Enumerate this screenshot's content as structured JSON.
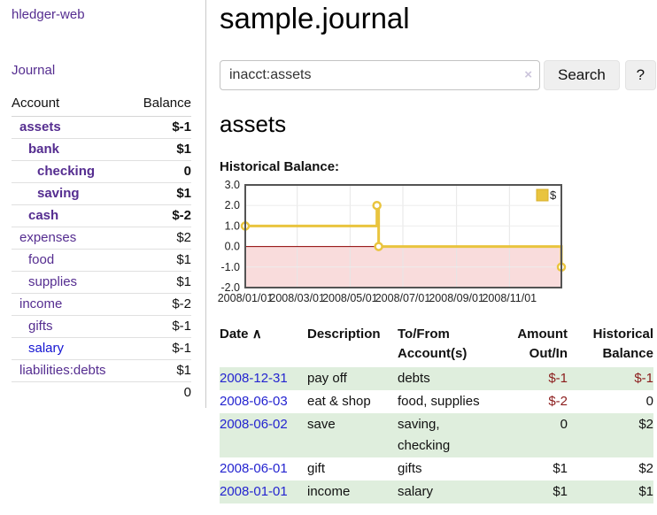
{
  "app": {
    "title": "hledger-web"
  },
  "colors": {
    "link_purple": "#552d90",
    "link_blue": "#1414d2",
    "negative_strong": "#8b1c1c",
    "negative_soft": "#c37e7e",
    "row_stripe_green": "#dfeedd",
    "chart_gold": "#e9c43e",
    "chart_negative_fill": "#f9dcdc",
    "chart_zero_line": "#8b0000"
  },
  "sidebar": {
    "journal_link": "Journal",
    "accounts_table": {
      "headers": {
        "account": "Account",
        "balance": "Balance"
      },
      "rows": [
        {
          "name": "assets",
          "indent": 1,
          "bold": true,
          "balance": "$-1",
          "negative": "strong"
        },
        {
          "name": "bank",
          "indent": 2,
          "bold": true,
          "balance": "$1",
          "negative": "none"
        },
        {
          "name": "checking",
          "indent": 3,
          "bold": true,
          "balance": "0",
          "negative": "none"
        },
        {
          "name": "saving",
          "indent": 3,
          "bold": true,
          "balance": "$1",
          "negative": "none"
        },
        {
          "name": "cash",
          "indent": 2,
          "bold": true,
          "balance": "$-2",
          "negative": "strong"
        },
        {
          "name": "expenses",
          "indent": 1,
          "bold": false,
          "balance": "$2",
          "negative": "none"
        },
        {
          "name": "food",
          "indent": 2,
          "bold": false,
          "balance": "$1",
          "negative": "none"
        },
        {
          "name": "supplies",
          "indent": 2,
          "bold": false,
          "balance": "$1",
          "negative": "none"
        },
        {
          "name": "income",
          "indent": 1,
          "bold": false,
          "balance": "$-2",
          "negative": "soft"
        },
        {
          "name": "gifts",
          "indent": 2,
          "bold": false,
          "balance": "$-1",
          "negative": "soft"
        },
        {
          "name": "salary",
          "indent": 2,
          "bold": false,
          "balance": "$-1",
          "negative": "soft",
          "link_style": "blue"
        },
        {
          "name": "liabilities:debts",
          "indent": 1,
          "bold": false,
          "balance": "$1",
          "negative": "none"
        }
      ],
      "total": "0"
    }
  },
  "header": {
    "title": "sample.journal"
  },
  "search": {
    "value": "inacct:assets",
    "clear_icon": "×",
    "button": "Search",
    "help_button": "?"
  },
  "account_page": {
    "title": "assets",
    "chart_label": "Historical Balance:"
  },
  "chart_data": {
    "type": "line",
    "title": "Historical Balance of assets",
    "step": true,
    "series": [
      {
        "name": "$",
        "color": "#e9c43e",
        "points": [
          [
            "2008/01/01",
            1
          ],
          [
            "2008/06/01",
            2
          ],
          [
            "2008/06/03",
            0
          ],
          [
            "2008/12/31",
            -1
          ]
        ]
      }
    ],
    "x_range": [
      "2008/01/01",
      "2008/12/31"
    ],
    "x_ticks": [
      "2008/01/01",
      "2008/03/01",
      "2008/05/01",
      "2008/07/01",
      "2008/09/01",
      "2008/11/01"
    ],
    "y_ticks": [
      3,
      2,
      1,
      0,
      -1,
      -2
    ],
    "ylim": [
      -2,
      3
    ],
    "grid": true,
    "legend": {
      "label": "$",
      "position": "top-right"
    },
    "negative_region": {
      "below": 0,
      "fill": "#f9dcdc",
      "line_color": "#8b0000"
    }
  },
  "register_table": {
    "sort_indicator": "∧",
    "columns": [
      {
        "label": "Date",
        "align": "left",
        "sorted": "asc"
      },
      {
        "label": "Description",
        "align": "left"
      },
      {
        "label": "To/From\nAccount(s)",
        "align": "left"
      },
      {
        "label": "Amount\nOut/In",
        "align": "right"
      },
      {
        "label": "Historical\nBalance",
        "align": "right"
      }
    ],
    "rows": [
      {
        "date": "2008-12-31",
        "description": "pay off",
        "accounts": "debts",
        "amount": "$-1",
        "amount_negative": true,
        "balance": "$-1",
        "balance_negative": true
      },
      {
        "date": "2008-06-03",
        "description": "eat & shop",
        "accounts": "food, supplies",
        "amount": "$-2",
        "amount_negative": true,
        "balance": "0",
        "balance_negative": false
      },
      {
        "date": "2008-06-02",
        "description": "save",
        "accounts": "saving, checking",
        "amount": "0",
        "amount_negative": false,
        "balance": "$2",
        "balance_negative": false
      },
      {
        "date": "2008-06-01",
        "description": "gift",
        "accounts": "gifts",
        "amount": "$1",
        "amount_negative": false,
        "balance": "$2",
        "balance_negative": false
      },
      {
        "date": "2008-01-01",
        "description": "income",
        "accounts": "salary",
        "amount": "$1",
        "amount_negative": false,
        "balance": "$1",
        "balance_negative": false
      }
    ]
  }
}
